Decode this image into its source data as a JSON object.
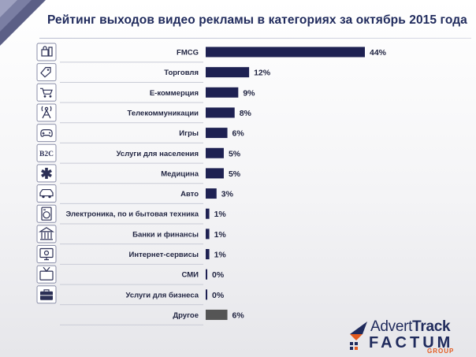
{
  "title": "Рейтинг выходов видео рекламы в категориях за октябрь 2015 года",
  "colors": {
    "bar": "#1e2152",
    "bar_other": "#555555",
    "title": "#1f2a5c",
    "logo_orange": "#e35a1f"
  },
  "chart_data": {
    "type": "bar",
    "orientation": "horizontal",
    "title": "Рейтинг выходов видео рекламы в категориях за октябрь 2015 года",
    "xlabel": "",
    "ylabel": "",
    "xlim": [
      0,
      44
    ],
    "grid": false,
    "categories": [
      "FMCG",
      "Торговля",
      "Е-коммерция",
      "Телекоммуникации",
      "Игры",
      "Услуги для населения",
      "Медицина",
      "Авто",
      "Электроника, по и бытовая техника",
      "Банки и финансы",
      "Интернет-сервисы",
      "СМИ",
      "Услуги для бизнеса",
      "Другое"
    ],
    "values": [
      44,
      12,
      9,
      8,
      6,
      5,
      5,
      3,
      1,
      1,
      1,
      0,
      0,
      6
    ],
    "value_labels": [
      "44%",
      "12%",
      "9%",
      "8%",
      "6%",
      "5%",
      "5%",
      "3%",
      "1%",
      "1%",
      "1%",
      "0%",
      "0%",
      "6%"
    ],
    "icons": [
      "shopping-bag-icon",
      "price-tag-icon",
      "shopping-cart-icon",
      "antenna-tower-icon",
      "gamepad-icon",
      "b2c-icon",
      "medical-star-icon",
      "car-icon",
      "washing-machine-icon",
      "bank-icon",
      "monitor-icon",
      "tv-icon",
      "briefcase-icon",
      null
    ],
    "icon_text": {
      "b2c-icon": "B2C"
    }
  },
  "logo": {
    "name_part1": "Advert",
    "name_part2": "Track",
    "sub": "FACTUM",
    "group": "GROUP"
  }
}
